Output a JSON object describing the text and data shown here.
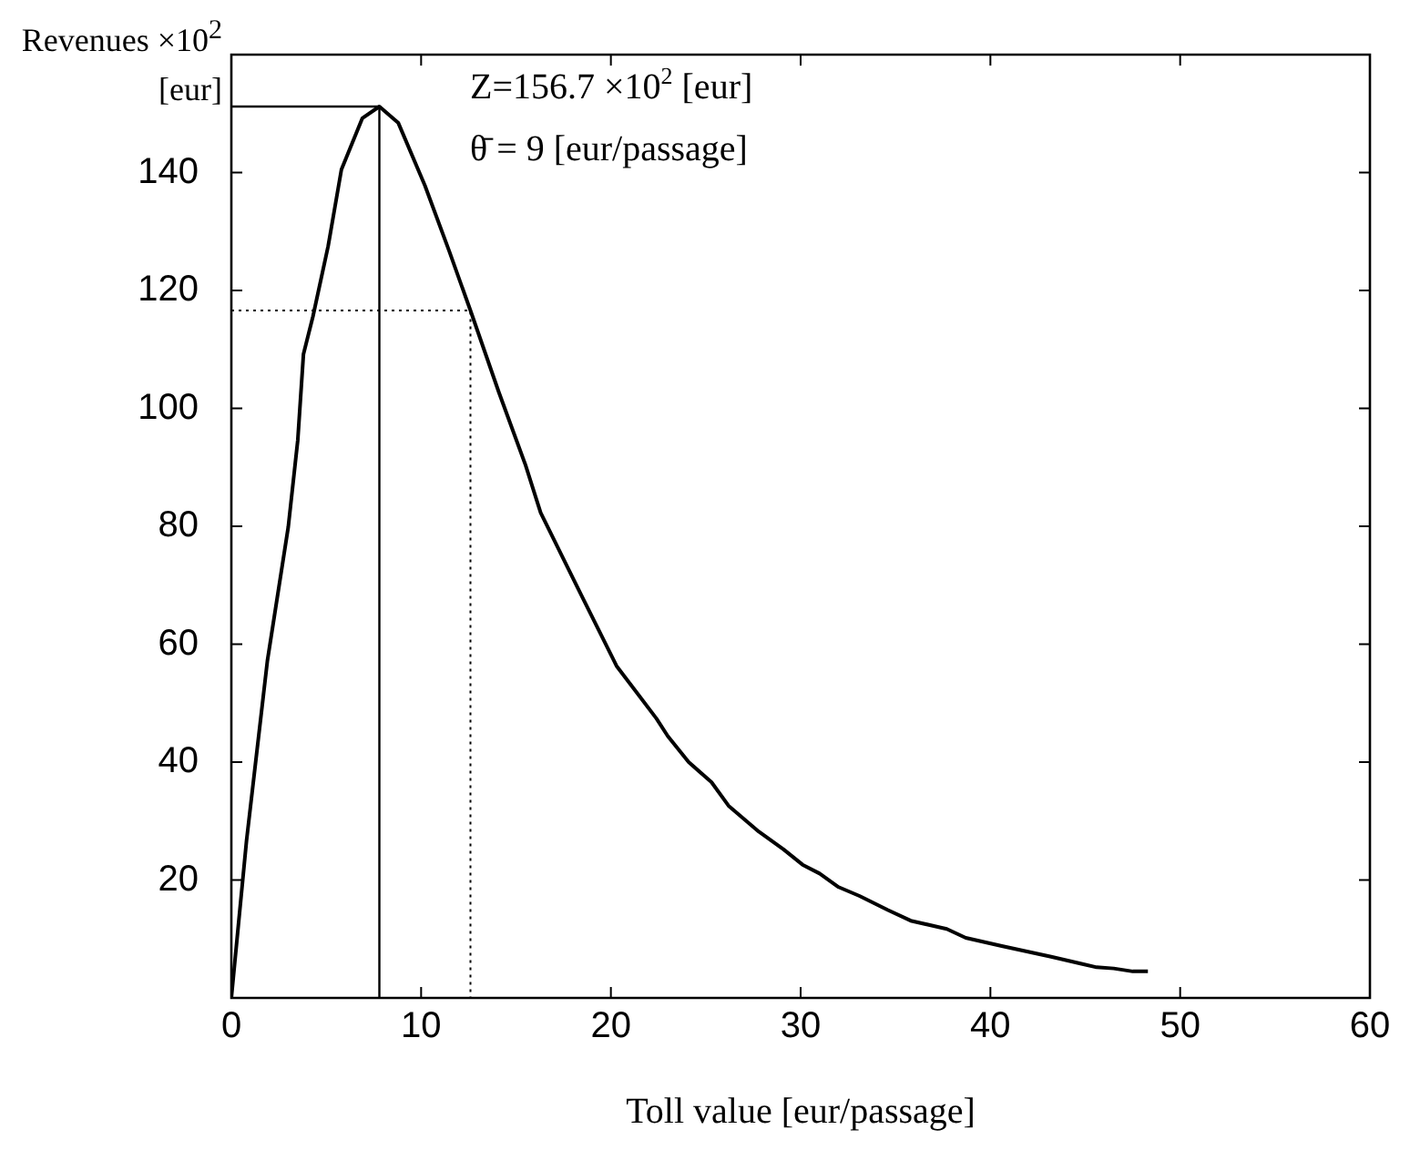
{
  "chart_data": {
    "type": "line",
    "xlabel": "Toll value [eur/passage]",
    "ylabel": "Revenues ×10$^{2}$ [eur]",
    "xlim": [
      0,
      60
    ],
    "xticks": [
      0,
      10,
      20,
      30,
      40,
      50,
      60
    ],
    "ylim": [
      0,
      160
    ],
    "yticks": [
      {
        "value": 0,
        "label": null
      },
      20,
      40,
      60,
      80,
      100,
      120,
      140,
      {
        "value": 160,
        "label": null
      }
    ],
    "grid": false,
    "legend": false,
    "marker": "none",
    "annotations": [
      "Z=156.7 ×10$^{2}$ [eur]",
      "θ̄ = 9 [eur/passage]"
    ],
    "series": [
      {
        "color": "#000000",
        "line_style": "solid",
        "x": [
          0,
          0.8,
          1.9,
          3.0,
          3.5,
          3.8,
          4.3,
          5.1,
          5.8,
          6.9,
          7.8,
          8.8,
          10.2,
          11.5,
          12.6,
          14.1,
          15.5,
          16.3,
          18.4,
          20.3,
          22.4,
          23.0,
          24.1,
          25.3,
          26.2,
          27.8,
          29.1,
          30.1,
          31.0,
          32.0,
          33.1,
          34.6,
          35.8,
          37.7,
          38.7,
          40.6,
          43.2,
          44.8,
          45.6,
          46.5,
          47.5,
          48.3
        ],
        "values": [
          0,
          26.7,
          57.2,
          79.9,
          94.6,
          109.2,
          115.6,
          127.5,
          140.5,
          149.2,
          151.2,
          148.4,
          137.8,
          126.5,
          116.6,
          102.7,
          90.4,
          82.3,
          68.6,
          56.3,
          47.4,
          44.4,
          40.0,
          36.6,
          32.6,
          28.2,
          25.2,
          22.6,
          21.1,
          18.8,
          17.3,
          14.9,
          13.1,
          11.7,
          10.2,
          8.8,
          7.0,
          5.8,
          5.2,
          5.0,
          4.5,
          4.5
        ]
      },
      {
        "color": "#000000",
        "line_style": "solid",
        "x": [
          0,
          7.8,
          7.8
        ],
        "values": [
          151.2,
          151.2,
          0
        ]
      },
      {
        "color": "#000000",
        "line_style": "dotted",
        "x": [
          0,
          12.6,
          12.6
        ],
        "values": [
          116.6,
          116.6,
          0
        ]
      }
    ]
  }
}
